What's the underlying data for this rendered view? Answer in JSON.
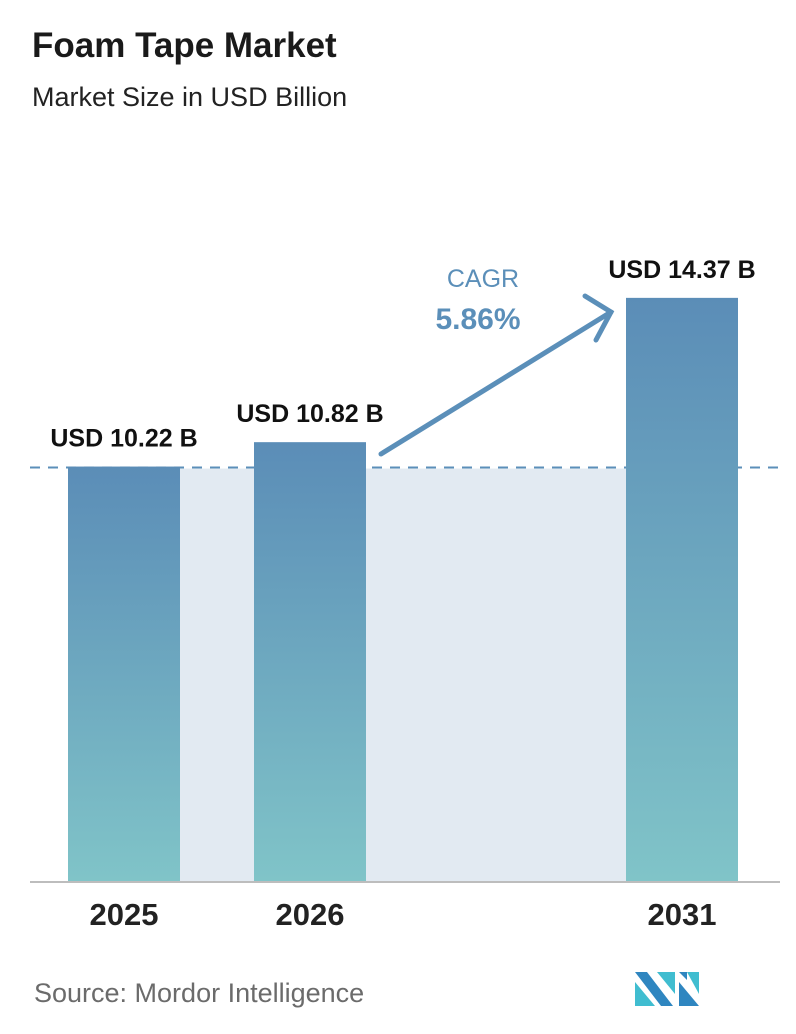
{
  "title": "Foam Tape Market",
  "subtitle": "Market Size in USD Billion",
  "source": "Source:  Mordor Intelligence",
  "logo_text": "Mordor Intelligence",
  "chart_data": {
    "type": "bar",
    "categories": [
      "2025",
      "2026",
      "2031"
    ],
    "values": [
      10.22,
      10.82,
      14.37
    ],
    "data_labels": [
      "USD 10.22 B",
      "USD 10.82 B",
      "USD 14.37 B"
    ],
    "annotation": {
      "label": "CAGR",
      "value": "5.86%"
    },
    "ylim": [
      0,
      15
    ],
    "grid": false,
    "colors": {
      "bar_top": "#5b8db7",
      "bar_bottom": "#80c4c8",
      "annotation": "#5b8fb9",
      "band": "#e2eaf2"
    }
  }
}
